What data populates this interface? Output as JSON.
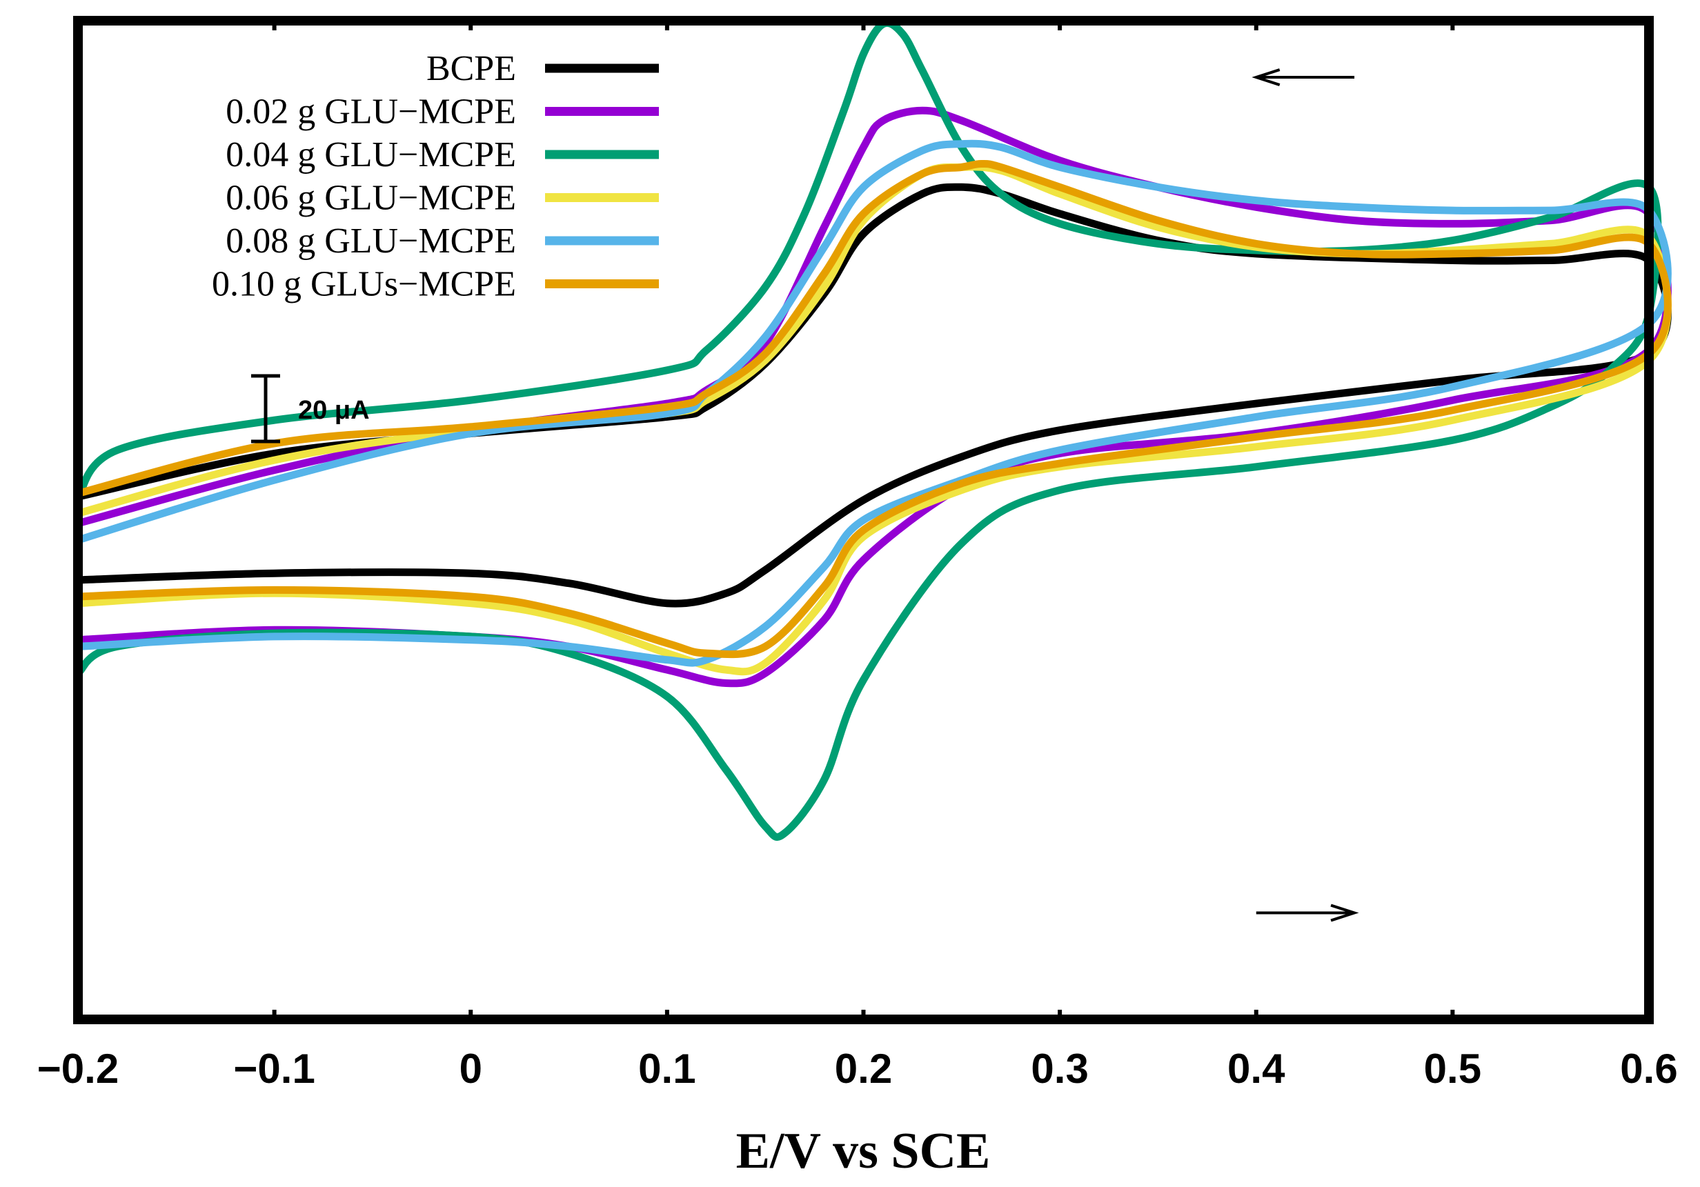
{
  "chart_data": {
    "type": "line",
    "title": "",
    "xlabel": "E/V vs SCE",
    "ylabel": "",
    "xlim": [
      -0.2,
      0.6
    ],
    "ylim": [
      -170,
      130
    ],
    "grid": false,
    "legend_position": "top-left",
    "x_ticks": [
      -0.2,
      -0.1,
      0,
      0.1,
      0.2,
      0.3,
      0.4,
      0.5,
      0.6
    ],
    "x_tick_labels": [
      "−0.2",
      "−0.1",
      "0",
      "0.1",
      "0.2",
      "0.3",
      "0.4",
      "0.5",
      "0.6"
    ],
    "scale_bar": {
      "label": "20 μA",
      "value": 20
    },
    "arrows": [
      {
        "name": "reverse-scan-arrow",
        "direction": "left",
        "x_from": 0.45,
        "x_to": 0.4,
        "y": 113
      },
      {
        "name": "forward-scan-arrow",
        "direction": "right",
        "x_from": 0.4,
        "x_to": 0.45,
        "y": -138
      }
    ],
    "series": [
      {
        "name": "BCPE",
        "color": "#000000",
        "cathodic": {
          "x": [
            -0.2,
            -0.1,
            0,
            0.05,
            0.1,
            0.13,
            0.15,
            0.2,
            0.25,
            0.3,
            0.4,
            0.5,
            0.6
          ],
          "y": [
            -38,
            -36,
            -36,
            -39,
            -45,
            -42,
            -35,
            -14,
            -1,
            7,
            15,
            22,
            30
          ]
        },
        "anodic": {
          "x": [
            0.6,
            0.55,
            0.5,
            0.4,
            0.35,
            0.3,
            0.27,
            0.25,
            0.23,
            0.2,
            0.18,
            0.15,
            0.12,
            0.1,
            0,
            -0.1,
            -0.2
          ],
          "y": [
            58,
            58,
            58,
            60,
            64,
            72,
            78,
            80,
            78,
            66,
            48,
            27,
            14,
            11,
            6,
            0,
            -13
          ]
        }
      },
      {
        "name": "0.02 g GLU−MCPE",
        "color": "#9400D3",
        "cathodic": {
          "x": [
            -0.2,
            -0.1,
            0,
            0.05,
            0.1,
            0.13,
            0.15,
            0.18,
            0.2,
            0.25,
            0.3,
            0.4,
            0.5,
            0.6
          ],
          "y": [
            -56,
            -53,
            -55,
            -58,
            -65,
            -69,
            -66,
            -50,
            -32,
            -10,
            0,
            6,
            16,
            31
          ]
        },
        "anodic": {
          "x": [
            0.6,
            0.55,
            0.5,
            0.45,
            0.4,
            0.35,
            0.3,
            0.25,
            0.23,
            0.21,
            0.2,
            0.18,
            0.15,
            0.12,
            0.1,
            0,
            -0.1,
            -0.2
          ],
          "y": [
            72,
            70,
            69,
            70,
            74,
            80,
            88,
            100,
            103,
            100,
            92,
            68,
            33,
            19,
            15,
            7,
            -5,
            -21
          ]
        }
      },
      {
        "name": "0.04 g GLU−MCPE",
        "color": "#009E73",
        "cathodic": {
          "x": [
            -0.2,
            -0.18,
            -0.1,
            0,
            0.05,
            0.1,
            0.13,
            0.15,
            0.16,
            0.18,
            0.2,
            0.25,
            0.3,
            0.4,
            0.5,
            0.55,
            0.58,
            0.6
          ],
          "y": [
            -66,
            -58,
            -54,
            -55,
            -60,
            -73,
            -95,
            -112,
            -114,
            -98,
            -68,
            -27,
            -11,
            -4,
            4,
            14,
            25,
            42
          ]
        },
        "anodic": {
          "x": [
            0.6,
            0.55,
            0.5,
            0.45,
            0.4,
            0.35,
            0.3,
            0.27,
            0.25,
            0.23,
            0.22,
            0.21,
            0.2,
            0.19,
            0.17,
            0.15,
            0.12,
            0.1,
            0,
            -0.1,
            -0.18,
            -0.2
          ],
          "y": [
            80,
            71,
            64,
            61,
            61,
            63,
            69,
            78,
            92,
            115,
            126,
            129,
            120,
            103,
            72,
            50,
            31,
            25,
            16,
            10,
            1,
            -13
          ]
        }
      },
      {
        "name": "0.06 g GLU−MCPE",
        "color": "#F0E442",
        "cathodic": {
          "x": [
            -0.2,
            -0.1,
            0,
            0.05,
            0.1,
            0.13,
            0.15,
            0.18,
            0.2,
            0.25,
            0.3,
            0.4,
            0.5,
            0.6
          ],
          "y": [
            -45,
            -42,
            -45,
            -50,
            -60,
            -65,
            -63,
            -44,
            -25,
            -11,
            -4,
            2,
            10,
            28
          ]
        },
        "anodic": {
          "x": [
            0.6,
            0.55,
            0.5,
            0.45,
            0.4,
            0.35,
            0.3,
            0.27,
            0.25,
            0.23,
            0.2,
            0.18,
            0.15,
            0.12,
            0.1,
            0,
            -0.1,
            -0.2
          ],
          "y": [
            65,
            63,
            61,
            60,
            62,
            68,
            78,
            85,
            86,
            84,
            70,
            50,
            28,
            16,
            12,
            7,
            -2,
            -18
          ]
        }
      },
      {
        "name": "0.08 g GLU−MCPE",
        "color": "#56B4E9",
        "cathodic": {
          "x": [
            -0.2,
            -0.1,
            0,
            0.05,
            0.1,
            0.12,
            0.15,
            0.18,
            0.2,
            0.25,
            0.3,
            0.4,
            0.5,
            0.6
          ],
          "y": [
            -58,
            -55,
            -56,
            -58,
            -62,
            -62,
            -52,
            -34,
            -20,
            -8,
            1,
            11,
            20,
            39
          ]
        },
        "anodic": {
          "x": [
            0.6,
            0.55,
            0.5,
            0.45,
            0.4,
            0.35,
            0.3,
            0.27,
            0.25,
            0.23,
            0.2,
            0.18,
            0.15,
            0.12,
            0.1,
            0,
            -0.1,
            -0.2
          ],
          "y": [
            73,
            73,
            73,
            74,
            76,
            80,
            86,
            92,
            93,
            91,
            80,
            62,
            35,
            18,
            12,
            6,
            -8,
            -26
          ]
        }
      },
      {
        "name": "0.10 g GLUs−MCPE",
        "color": "#E69F00",
        "cathodic": {
          "x": [
            -0.2,
            -0.1,
            0,
            0.05,
            0.1,
            0.12,
            0.15,
            0.18,
            0.2,
            0.25,
            0.3,
            0.4,
            0.5,
            0.6
          ],
          "y": [
            -43,
            -41,
            -43,
            -48,
            -57,
            -60,
            -58,
            -40,
            -23,
            -9,
            -3,
            5,
            13,
            30
          ]
        },
        "anodic": {
          "x": [
            0.6,
            0.55,
            0.5,
            0.45,
            0.4,
            0.35,
            0.3,
            0.27,
            0.26,
            0.25,
            0.23,
            0.2,
            0.18,
            0.15,
            0.12,
            0.1,
            0,
            -0.1,
            -0.2
          ],
          "y": [
            63,
            61,
            60,
            60,
            63,
            70,
            80,
            86,
            87,
            86,
            84,
            72,
            54,
            30,
            18,
            14,
            8,
            3,
            -12
          ]
        }
      }
    ]
  }
}
